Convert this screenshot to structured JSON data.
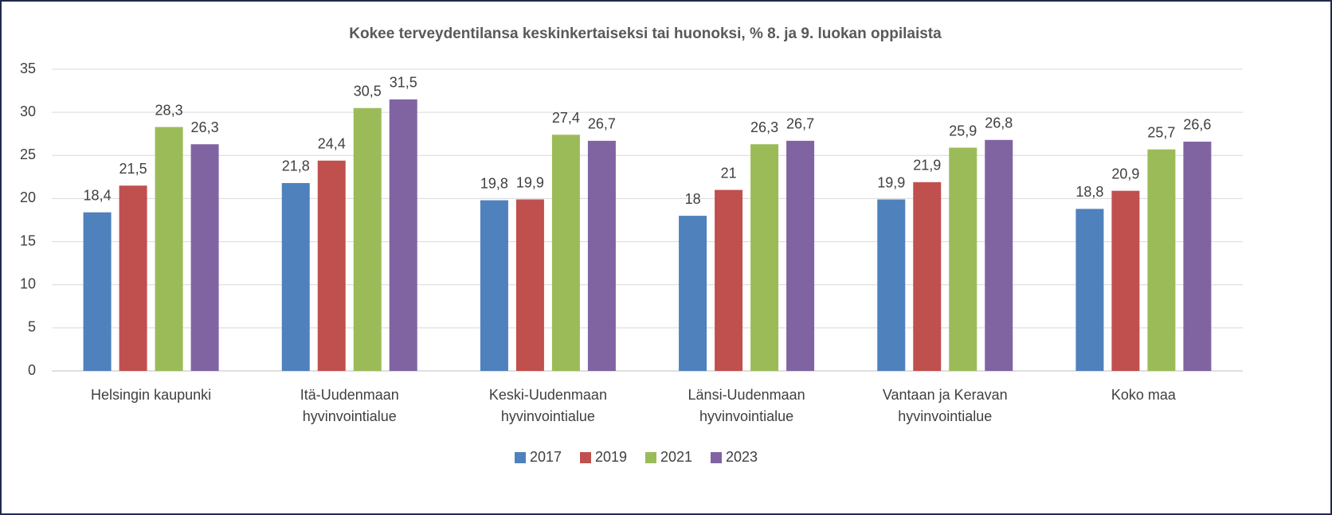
{
  "chart_data": {
    "type": "bar",
    "title": "Kokee terveydentilansa keskinkertaiseksi tai huonoksi, % 8. ja 9. luokan oppilaista",
    "categories": [
      [
        "Helsingin kaupunki"
      ],
      [
        "Itä-Uudenmaan",
        "hyvinvointialue"
      ],
      [
        "Keski-Uudenmaan",
        "hyvinvointialue"
      ],
      [
        "Länsi-Uudenmaan",
        "hyvinvointialue"
      ],
      [
        "Vantaan ja Keravan",
        "hyvinvointialue"
      ],
      [
        "Koko maa"
      ]
    ],
    "series": [
      {
        "name": "2017",
        "color": "#4f81bd",
        "values": [
          18.4,
          21.8,
          19.8,
          18,
          19.9,
          18.8
        ],
        "value_labels": [
          "18,4",
          "21,8",
          "19,8",
          "18",
          "19,9",
          "18,8"
        ]
      },
      {
        "name": "2019",
        "color": "#c0504d",
        "values": [
          21.5,
          24.4,
          19.9,
          21,
          21.9,
          20.9
        ],
        "value_labels": [
          "21,5",
          "24,4",
          "19,9",
          "21",
          "21,9",
          "20,9"
        ]
      },
      {
        "name": "2021",
        "color": "#9bbb59",
        "values": [
          28.3,
          30.5,
          27.4,
          26.3,
          25.9,
          25.7
        ],
        "value_labels": [
          "28,3",
          "30,5",
          "27,4",
          "26,3",
          "25,9",
          "25,7"
        ]
      },
      {
        "name": "2023",
        "color": "#8064a2",
        "values": [
          26.3,
          31.5,
          26.7,
          26.7,
          26.8,
          26.6
        ],
        "value_labels": [
          "26,3",
          "31,5",
          "26,7",
          "26,7",
          "26,8",
          "26,6"
        ]
      }
    ],
    "ylim": [
      0,
      35
    ],
    "yticks": [
      0,
      5,
      10,
      15,
      20,
      25,
      30,
      35
    ],
    "grid": true,
    "legend": "bottom"
  }
}
